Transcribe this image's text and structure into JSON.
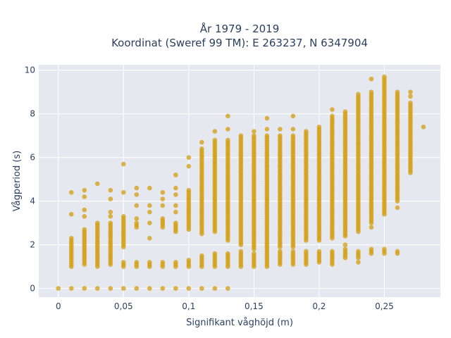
{
  "chart_data": {
    "type": "scatter",
    "title_lines": [
      "År 1979 - 2019",
      "Koordinat (Sweref 99 TM): E 263237, N 6347904"
    ],
    "xlabel": "Signifikant våghöjd (m)",
    "ylabel": "Vågperiod (s)",
    "xlim": [
      -0.015,
      0.293
    ],
    "ylim": [
      -0.4,
      10.25
    ],
    "x_ticks": [
      0,
      0.05,
      0.1,
      0.15,
      0.2,
      0.25
    ],
    "x_tick_labels": [
      "0",
      "0,05",
      "0,1",
      "0,15",
      "0,2",
      "0,25"
    ],
    "y_ticks": [
      0,
      2,
      4,
      6,
      8,
      10
    ],
    "y_tick_labels": [
      "0",
      "2",
      "4",
      "6",
      "8",
      "10"
    ],
    "grid": true,
    "marker_color": "#d4a017",
    "background_color": "#e5e8ef",
    "grid_color": "#ffffff",
    "columns": [
      {
        "x": 0.0,
        "segments": [
          [
            0,
            0
          ]
        ],
        "outliers": []
      },
      {
        "x": 0.01,
        "segments": [
          [
            0,
            0
          ],
          [
            1.0,
            2.3
          ]
        ],
        "outliers": [
          3.4,
          4.4
        ]
      },
      {
        "x": 0.02,
        "segments": [
          [
            0,
            0
          ],
          [
            1.1,
            2.7
          ]
        ],
        "outliers": [
          3.3,
          3.6,
          4.2,
          4.5
        ]
      },
      {
        "x": 0.03,
        "segments": [
          [
            0,
            0
          ],
          [
            1.0,
            3.0
          ]
        ],
        "outliers": [
          4.8
        ]
      },
      {
        "x": 0.04,
        "segments": [
          [
            0,
            0
          ],
          [
            1.1,
            3.0
          ]
        ],
        "outliers": [
          3.3,
          3.5,
          4.1,
          4.5
        ]
      },
      {
        "x": 0.05,
        "segments": [
          [
            0,
            0
          ],
          [
            1.0,
            1.2
          ],
          [
            1.9,
            3.3
          ]
        ],
        "outliers": [
          4.4,
          5.7
        ]
      },
      {
        "x": 0.06,
        "segments": [
          [
            0,
            0
          ],
          [
            1.0,
            1.2
          ],
          [
            2.8,
            3.0
          ]
        ],
        "outliers": [
          3.2,
          3.8,
          4.3,
          4.6
        ]
      },
      {
        "x": 0.07,
        "segments": [
          [
            0,
            0
          ],
          [
            1.0,
            1.2
          ]
        ],
        "outliers": [
          2.3,
          3.0,
          3.5,
          3.8,
          4.6
        ]
      },
      {
        "x": 0.08,
        "segments": [
          [
            0,
            0
          ],
          [
            1.0,
            1.2
          ],
          [
            2.8,
            3.2
          ]
        ],
        "outliers": [
          3.8,
          4.1,
          4.4
        ]
      },
      {
        "x": 0.09,
        "segments": [
          [
            0,
            0
          ],
          [
            1.0,
            1.2
          ],
          [
            2.6,
            3.0
          ]
        ],
        "outliers": [
          3.5,
          3.8,
          4.3,
          4.6,
          5.2
        ]
      },
      {
        "x": 0.1,
        "segments": [
          [
            0,
            0
          ],
          [
            1.0,
            1.3
          ],
          [
            2.7,
            4.5
          ]
        ],
        "outliers": [
          5.6,
          6.0
        ]
      },
      {
        "x": 0.11,
        "segments": [
          [
            0,
            0
          ],
          [
            1.0,
            1.5
          ],
          [
            2.5,
            6.4
          ]
        ],
        "outliers": [
          6.7
        ]
      },
      {
        "x": 0.12,
        "segments": [
          [
            0,
            0
          ],
          [
            1.0,
            1.6
          ],
          [
            2.6,
            6.8
          ]
        ],
        "outliers": [
          7.2
        ]
      },
      {
        "x": 0.13,
        "segments": [
          [
            0,
            0
          ],
          [
            1.0,
            1.6
          ],
          [
            2.2,
            6.8
          ]
        ],
        "outliers": [
          7.3,
          7.9
        ]
      },
      {
        "x": 0.14,
        "segments": [
          [
            1.0,
            1.7
          ],
          [
            2.0,
            7.0
          ]
        ],
        "outliers": []
      },
      {
        "x": 0.15,
        "segments": [
          [
            1.0,
            1.6
          ],
          [
            1.8,
            7.0
          ]
        ],
        "outliers": [
          7.2
        ]
      },
      {
        "x": 0.16,
        "segments": [
          [
            1.0,
            1.7
          ],
          [
            1.8,
            7.0
          ]
        ],
        "outliers": [
          7.3,
          7.8
        ]
      },
      {
        "x": 0.17,
        "segments": [
          [
            1.1,
            1.7
          ],
          [
            1.9,
            7.0
          ]
        ],
        "outliers": [
          7.3
        ]
      },
      {
        "x": 0.18,
        "segments": [
          [
            1.1,
            1.7
          ],
          [
            1.9,
            7.0
          ]
        ],
        "outliers": [
          7.3,
          7.9
        ]
      },
      {
        "x": 0.19,
        "segments": [
          [
            1.1,
            1.7
          ],
          [
            2.2,
            7.2
          ]
        ],
        "outliers": []
      },
      {
        "x": 0.2,
        "segments": [
          [
            1.2,
            1.7
          ],
          [
            2.2,
            7.4
          ]
        ],
        "outliers": []
      },
      {
        "x": 0.21,
        "segments": [
          [
            1.1,
            1.7
          ],
          [
            2.3,
            7.9
          ]
        ],
        "outliers": [
          8.2
        ]
      },
      {
        "x": 0.22,
        "segments": [
          [
            1.4,
            1.8
          ],
          [
            2.4,
            8.1
          ]
        ],
        "outliers": [
          2.0
        ]
      },
      {
        "x": 0.23,
        "segments": [
          [
            1.4,
            1.7
          ],
          [
            2.6,
            8.9
          ]
        ],
        "outliers": [
          1.2
        ]
      },
      {
        "x": 0.24,
        "segments": [
          [
            1.6,
            1.8
          ],
          [
            3.0,
            9.0
          ]
        ],
        "outliers": [
          2.8,
          9.6
        ]
      },
      {
        "x": 0.25,
        "segments": [
          [
            1.6,
            1.8
          ],
          [
            3.4,
            9.7
          ]
        ],
        "outliers": []
      },
      {
        "x": 0.26,
        "segments": [
          [
            1.6,
            1.7
          ],
          [
            4.0,
            9.0
          ]
        ],
        "outliers": [
          3.7
        ]
      },
      {
        "x": 0.27,
        "segments": [
          [
            5.3,
            8.5
          ]
        ],
        "outliers": [
          8.8,
          9.0
        ]
      },
      {
        "x": 0.28,
        "segments": [],
        "outliers": [
          7.4
        ]
      }
    ]
  }
}
